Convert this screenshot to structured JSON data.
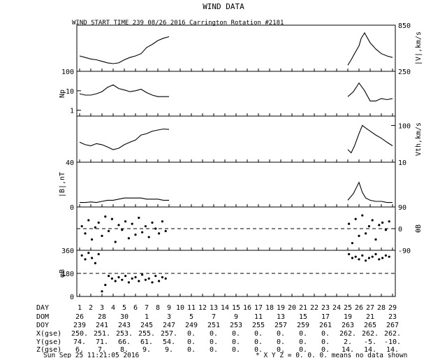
{
  "header": {
    "title": "WIND DATA",
    "subtitle": "WIND START TIME 239 08/26 2016 Carrington Rotation #2181"
  },
  "footer": {
    "timestamp": "Sun Sep 25 11:21:05 2016",
    "note": "* X Y Z = 0. 0. 0. means no data shown"
  },
  "table": {
    "labels": [
      "DAY",
      "DOM",
      "DOY",
      "X(gse)",
      "Y(gse)",
      "Z(gse)"
    ],
    "day": [
      "1",
      "2",
      "3",
      "4",
      "5",
      "6",
      "7",
      "8",
      "9",
      "10",
      "11",
      "12",
      "13",
      "14",
      "15",
      "16",
      "17",
      "18",
      "19",
      "20",
      "21",
      "22",
      "23",
      "24",
      "25",
      "26",
      "27",
      "28",
      "29"
    ],
    "dom": [
      "26",
      "28",
      "30",
      "1",
      "3",
      "5",
      "7",
      "9",
      "11",
      "13",
      "15",
      "17",
      "19",
      "21",
      "23"
    ],
    "doy": [
      "239",
      "241",
      "243",
      "245",
      "247",
      "249",
      "251",
      "253",
      "255",
      "257",
      "259",
      "261",
      "263",
      "265",
      "267"
    ],
    "x": [
      "250.",
      "251.",
      "253.",
      "255.",
      "257.",
      "0.",
      "0.",
      "0.",
      "0.",
      "0.",
      "0.",
      "0.",
      "262.",
      "262.",
      "262."
    ],
    "y": [
      "74.",
      "71.",
      "66.",
      "61.",
      "54.",
      "0.",
      "0.",
      "0.",
      "0.",
      "0.",
      "0.",
      "0.",
      "2.",
      "-5.",
      "-10."
    ],
    "z": [
      "6.",
      "7.",
      "8.",
      "9.",
      "9.",
      "0.",
      "0.",
      "0.",
      "0.",
      "0.",
      "0.",
      "0.",
      "14.",
      "14.",
      "14."
    ]
  },
  "chart_data": [
    {
      "type": "line",
      "ylabel": "|V|,km/s",
      "label_side": "right",
      "ylim": [
        250,
        850
      ],
      "yticks": [
        "850",
        "250"
      ],
      "x": [
        1,
        1.5,
        2,
        2.5,
        3,
        3.5,
        4,
        4.5,
        5,
        5.5,
        6,
        6.5,
        7,
        7.5,
        8,
        8.5,
        9,
        25,
        25.3,
        25.6,
        26,
        26.2,
        26.5,
        27,
        27.5,
        28,
        28.5,
        29
      ],
      "values": [
        450,
        430,
        410,
        400,
        380,
        360,
        350,
        360,
        400,
        430,
        450,
        480,
        560,
        600,
        650,
        680,
        700,
        330,
        400,
        480,
        580,
        680,
        750,
        620,
        540,
        480,
        450,
        430
      ]
    },
    {
      "type": "line",
      "ylabel": "Np",
      "label_side": "left",
      "scale": "log",
      "ylim": [
        0.5,
        100
      ],
      "yticks": [
        "100",
        "10",
        "1"
      ],
      "x": [
        1,
        1.5,
        2,
        2.5,
        3,
        3.5,
        4,
        4.5,
        5,
        5.5,
        6,
        6.5,
        7,
        7.5,
        8,
        8.5,
        9,
        25,
        25.5,
        26,
        26.5,
        27,
        27.5,
        28,
        28.5,
        29
      ],
      "values": [
        7,
        6,
        6,
        7,
        9,
        15,
        20,
        13,
        11,
        9,
        10,
        12,
        8,
        6,
        5,
        5,
        5,
        5,
        9,
        25,
        10,
        3,
        3,
        4,
        3.5,
        4
      ]
    },
    {
      "type": "line",
      "ylabel": "Vth,km/s",
      "label_side": "right",
      "scale": "log",
      "ylim": [
        10,
        180
      ],
      "yticks": [
        "100",
        "10"
      ],
      "x": [
        1,
        1.5,
        2,
        2.5,
        3,
        3.5,
        4,
        4.5,
        5,
        5.5,
        6,
        6.5,
        7,
        7.5,
        8,
        8.5,
        9,
        25,
        25.3,
        25.6,
        26,
        26.3,
        26.6,
        27,
        27.5,
        28,
        28.5,
        29
      ],
      "values": [
        35,
        30,
        28,
        32,
        30,
        26,
        22,
        24,
        30,
        35,
        40,
        55,
        60,
        70,
        75,
        80,
        78,
        22,
        18,
        28,
        60,
        100,
        85,
        70,
        55,
        45,
        35,
        28
      ]
    },
    {
      "type": "line",
      "ylabel": "|B|,nT",
      "label_side": "left",
      "ylim": [
        0,
        40
      ],
      "yticks": [
        "40",
        "0"
      ],
      "x": [
        1,
        1.5,
        2,
        2.5,
        3,
        3.5,
        4,
        4.5,
        5,
        5.5,
        6,
        6.5,
        7,
        7.5,
        8,
        8.5,
        9,
        25,
        25.5,
        26,
        26.3,
        26.6,
        27,
        27.5,
        28,
        28.5,
        29
      ],
      "values": [
        4,
        4,
        4.5,
        4,
        5,
        6,
        6,
        7,
        8,
        8,
        8,
        8,
        7,
        7,
        7,
        6,
        6,
        6,
        12,
        22,
        13,
        8,
        6,
        5,
        5,
        4,
        4
      ]
    },
    {
      "type": "scatter",
      "ylabel": "θB",
      "label_side": "right",
      "ylim": [
        -90,
        90
      ],
      "yticks": [
        "90",
        "0",
        "-90"
      ],
      "reference_line": 0,
      "x": [
        1.2,
        1.5,
        1.8,
        2.1,
        2.4,
        2.7,
        3.0,
        3.3,
        3.6,
        3.9,
        4.2,
        4.5,
        4.8,
        5.1,
        5.4,
        5.7,
        6.0,
        6.3,
        6.6,
        6.9,
        7.2,
        7.5,
        7.8,
        8.1,
        8.4,
        8.7,
        25.1,
        25.4,
        25.7,
        26.0,
        26.3,
        26.6,
        26.9,
        27.2,
        27.5,
        27.8,
        28.1,
        28.4,
        28.7
      ],
      "values": [
        10,
        -20,
        35,
        -45,
        5,
        25,
        -30,
        50,
        -10,
        40,
        -55,
        15,
        -5,
        30,
        -40,
        20,
        -25,
        45,
        -15,
        10,
        -35,
        25,
        0,
        -20,
        30,
        -10,
        20,
        -60,
        40,
        -30,
        55,
        -20,
        10,
        35,
        -45,
        15,
        25,
        -5,
        30
      ]
    },
    {
      "type": "scatter",
      "ylabel": "φB",
      "label_side": "left",
      "ylim": [
        0,
        360
      ],
      "yticks": [
        "360",
        "180",
        "0"
      ],
      "reference_line": 180,
      "x": [
        1.2,
        1.5,
        1.8,
        2.1,
        2.4,
        2.7,
        3.0,
        3.3,
        3.6,
        3.9,
        4.2,
        4.5,
        4.8,
        5.1,
        5.4,
        5.7,
        6.0,
        6.3,
        6.6,
        6.9,
        7.2,
        7.5,
        7.8,
        8.1,
        8.4,
        8.7,
        25.1,
        25.4,
        25.7,
        26.0,
        26.3,
        26.6,
        26.9,
        27.2,
        27.5,
        27.8,
        28.1,
        28.4,
        28.7
      ],
      "values": [
        320,
        290,
        340,
        300,
        260,
        330,
        40,
        90,
        160,
        140,
        120,
        150,
        130,
        160,
        110,
        140,
        150,
        120,
        170,
        130,
        140,
        110,
        160,
        120,
        150,
        140,
        330,
        300,
        310,
        290,
        320,
        280,
        300,
        310,
        330,
        290,
        300,
        320,
        310
      ]
    }
  ]
}
